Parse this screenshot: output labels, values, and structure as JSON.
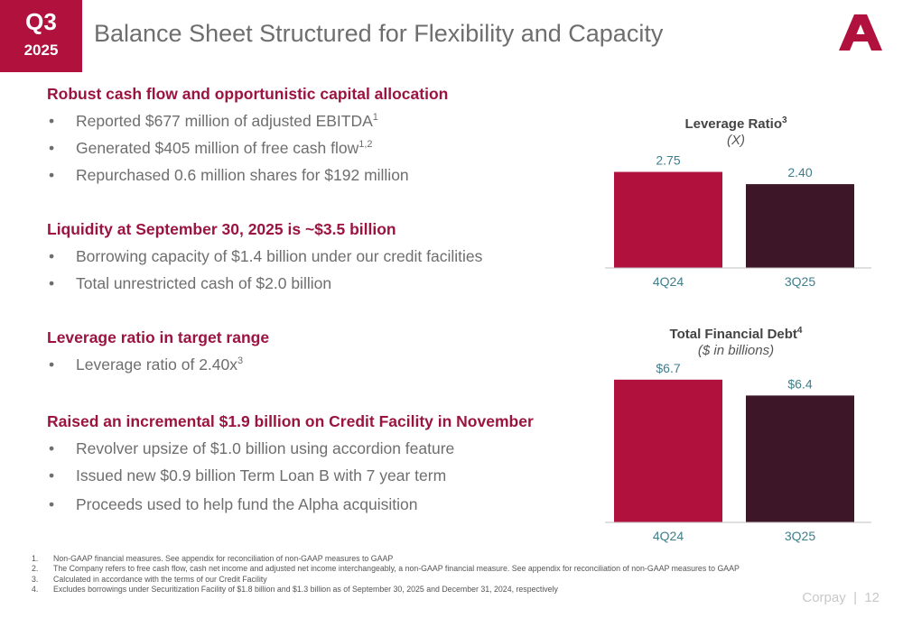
{
  "badge": {
    "quarter": "Q3",
    "year": "2025"
  },
  "title": "Balance Sheet Structured for Flexibility and Capacity",
  "colors": {
    "accent": "#b0113d",
    "bar_primary": "#b0113d",
    "bar_secondary": "#3d1628",
    "label": "#3e7f8c"
  },
  "sections": [
    {
      "heading": "Robust cash flow and opportunistic capital allocation",
      "bullets": [
        {
          "text": "Reported $677 million of adjusted EBITDA",
          "sup": "1"
        },
        {
          "text": "Generated $405 million of free cash flow",
          "sup": "1,2"
        },
        {
          "text": "Repurchased 0.6 million shares for $192 million",
          "sup": ""
        }
      ]
    },
    {
      "heading": "Liquidity at September 30, 2025 is ~$3.5 billion",
      "bullets": [
        {
          "text": "Borrowing capacity of $1.4 billion under our credit facilities",
          "sup": ""
        },
        {
          "text": "Total unrestricted cash of $2.0 billion",
          "sup": ""
        }
      ]
    },
    {
      "heading": "Leverage ratio in target range",
      "bullets": [
        {
          "text": "Leverage ratio of 2.40x",
          "sup": "3"
        }
      ]
    },
    {
      "heading": "Raised an incremental $1.9 billion on Credit Facility in November",
      "bullets": [
        {
          "text": "Revolver upsize of $1.0 billion using accordion feature",
          "sup": ""
        },
        {
          "text": "Issued new $0.9 billion Term Loan B with 7 year term",
          "sup": ""
        },
        {
          "text": "Proceeds used to help fund the Alpha acquisition",
          "sup": ""
        }
      ]
    }
  ],
  "chart_data": [
    {
      "type": "bar",
      "title": "Leverage Ratio",
      "title_sup": "3",
      "subtitle": "(X)",
      "categories": [
        "4Q24",
        "3Q25"
      ],
      "values": [
        2.75,
        2.4
      ],
      "data_labels": [
        "2.75",
        "2.40"
      ],
      "ylim": [
        0,
        3.1
      ]
    },
    {
      "type": "bar",
      "title": "Total Financial Debt",
      "title_sup": "4",
      "subtitle": "($ in billions)",
      "categories": [
        "4Q24",
        "3Q25"
      ],
      "values": [
        6.7,
        6.4
      ],
      "data_labels": [
        "$6.7",
        "$6.4"
      ],
      "ylim": [
        4.0,
        6.97
      ]
    }
  ],
  "footnotes": [
    {
      "num": "1.",
      "text": "Non-GAAP financial measures. See appendix for reconciliation of non-GAAP measures to GAAP"
    },
    {
      "num": "2.",
      "text": "The Company refers to free cash flow, cash net income and adjusted net income interchangeably, a non-GAAP financial measure. See appendix for reconciliation of non-GAAP measures to GAAP"
    },
    {
      "num": "3.",
      "text": "Calculated in accordance with the terms of our Credit Facility"
    },
    {
      "num": "4.",
      "text": "Excludes borrowings under Securitization Facility of $1.8 billion and $1.3 billion as of September 30, 2025 and December 31, 2024, respectively"
    }
  ],
  "footer": {
    "brand": "Corpay",
    "separator": "|",
    "page": "12"
  }
}
